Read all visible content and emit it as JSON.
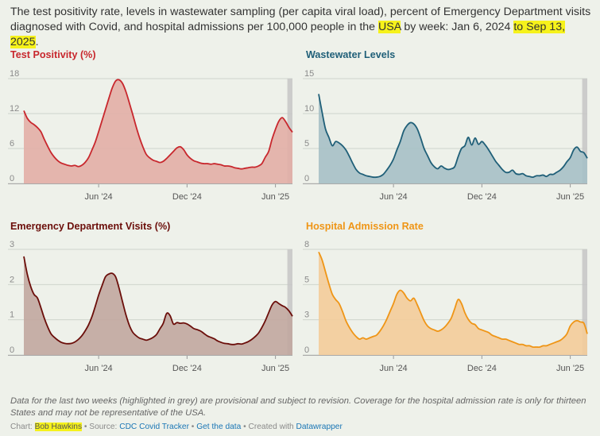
{
  "intro": {
    "part1": "The test positivity rate, levels in wastewater sampling (per capita viral load), percent of Emergency Department visits diagnosed with Covid, and hospital admissions per 100,000 people in the ",
    "country": "USA",
    "part2": " by week: Jan 6, 2024 ",
    "end_date": "to Sep 13, 2025",
    "part3": "."
  },
  "colors": {
    "test_positivity": "#c8272d",
    "test_positivity_fill": "#e2aea6",
    "wastewater": "#1f5f78",
    "wastewater_fill": "#a6c0c6",
    "ed_visits": "#6b0e0a",
    "ed_visits_fill": "#c1a7a0",
    "hospital": "#ef9516",
    "hospital_fill": "#f3cc9a",
    "provisional": "#c6c6c6",
    "grid": "#cfd4cc"
  },
  "chart_data": [
    {
      "id": "test_positivity",
      "type": "area",
      "title": "Test Positivity (%)",
      "ylim": [
        0,
        18
      ],
      "yticks": [
        "0",
        "6",
        "12",
        "18"
      ],
      "xticks": [
        "Jun '24",
        "Dec '24",
        "Jun '25"
      ],
      "xticks_week": [
        22,
        48,
        74
      ],
      "provisional_last_weeks": 2,
      "values": [
        12.5,
        11.2,
        10.5,
        10.1,
        9.6,
        8.9,
        7.6,
        6.4,
        5.3,
        4.5,
        3.9,
        3.5,
        3.3,
        3.1,
        3.0,
        3.1,
        2.9,
        3.1,
        3.6,
        4.4,
        5.7,
        7.1,
        8.9,
        10.8,
        12.7,
        14.6,
        16.4,
        17.6,
        17.8,
        17.2,
        15.8,
        13.9,
        11.9,
        9.8,
        7.9,
        6.3,
        5.0,
        4.4,
        4.0,
        3.8,
        3.6,
        3.8,
        4.3,
        4.9,
        5.5,
        6.1,
        6.3,
        5.8,
        4.9,
        4.3,
        3.9,
        3.7,
        3.5,
        3.4,
        3.4,
        3.3,
        3.4,
        3.3,
        3.2,
        3.0,
        3.0,
        2.9,
        2.7,
        2.6,
        2.5,
        2.6,
        2.7,
        2.8,
        2.8,
        3.0,
        3.4,
        4.5,
        5.5,
        7.6,
        9.3,
        10.7,
        11.3,
        10.6,
        9.6,
        8.8
      ]
    },
    {
      "id": "wastewater",
      "type": "area",
      "title": "Wastewater Levels",
      "ylim": [
        0,
        15
      ],
      "yticks": [
        "0",
        "5",
        "10",
        "15"
      ],
      "xticks": [
        "Jun '24",
        "Dec '24",
        "Jun '25"
      ],
      "xticks_week": [
        22,
        48,
        74
      ],
      "provisional_last_weeks": 2,
      "values": [
        12.8,
        10.2,
        7.8,
        6.6,
        5.4,
        6.0,
        5.8,
        5.4,
        4.8,
        3.9,
        2.9,
        2.0,
        1.5,
        1.3,
        1.1,
        1.0,
        0.9,
        0.9,
        1.0,
        1.3,
        1.9,
        2.6,
        3.5,
        4.8,
        6.0,
        7.5,
        8.3,
        8.7,
        8.5,
        7.8,
        6.5,
        5.0,
        4.0,
        3.0,
        2.4,
        2.1,
        2.5,
        2.2,
        2.0,
        2.1,
        2.4,
        3.8,
        5.0,
        5.4,
        6.6,
        5.5,
        6.5,
        5.6,
        6.0,
        5.5,
        4.8,
        4.0,
        3.2,
        2.6,
        2.0,
        1.6,
        1.6,
        1.9,
        1.4,
        1.3,
        1.4,
        1.1,
        1.0,
        0.9,
        1.1,
        1.1,
        1.2,
        1.0,
        1.3,
        1.3,
        1.6,
        1.9,
        2.4,
        3.1,
        3.7,
        4.8,
        5.2,
        4.6,
        4.4,
        3.6
      ]
    },
    {
      "id": "ed_visits",
      "type": "area",
      "title": "Emergency Department Visits (%)",
      "ylim": [
        0,
        3
      ],
      "yticks": [
        "0",
        "1",
        "2",
        "3"
      ],
      "xticks": [
        "Jun '24",
        "Dec '24",
        "Jun '25"
      ],
      "xticks_week": [
        22,
        48,
        74
      ],
      "provisional_last_weeks": 2,
      "values": [
        2.8,
        2.3,
        1.95,
        1.72,
        1.62,
        1.35,
        1.05,
        0.8,
        0.6,
        0.5,
        0.42,
        0.36,
        0.33,
        0.32,
        0.33,
        0.37,
        0.44,
        0.54,
        0.68,
        0.85,
        1.08,
        1.38,
        1.7,
        1.97,
        2.22,
        2.3,
        2.32,
        2.22,
        1.9,
        1.52,
        1.15,
        0.85,
        0.65,
        0.55,
        0.48,
        0.45,
        0.42,
        0.45,
        0.5,
        0.58,
        0.74,
        0.9,
        1.18,
        1.12,
        0.88,
        0.92,
        0.9,
        0.91,
        0.88,
        0.82,
        0.75,
        0.72,
        0.68,
        0.61,
        0.54,
        0.5,
        0.46,
        0.4,
        0.36,
        0.33,
        0.32,
        0.3,
        0.3,
        0.32,
        0.31,
        0.34,
        0.38,
        0.44,
        0.52,
        0.62,
        0.78,
        0.97,
        1.2,
        1.42,
        1.52,
        1.46,
        1.4,
        1.35,
        1.25,
        1.1
      ]
    },
    {
      "id": "hospital",
      "type": "area",
      "title": "Hospital Admission Rate",
      "ylim": [
        0,
        8
      ],
      "yticks": [
        "0",
        "3",
        "5",
        "8"
      ],
      "xticks": [
        "Jun '24",
        "Dec '24",
        "Jun '25"
      ],
      "xticks_week": [
        22,
        48,
        74
      ],
      "provisional_last_weeks": 2,
      "values": [
        7.8,
        7.2,
        6.3,
        5.4,
        4.6,
        4.2,
        3.9,
        3.3,
        2.6,
        2.1,
        1.7,
        1.4,
        1.2,
        1.3,
        1.2,
        1.3,
        1.4,
        1.5,
        1.8,
        2.2,
        2.7,
        3.3,
        3.9,
        4.6,
        4.9,
        4.7,
        4.3,
        4.1,
        4.3,
        3.8,
        3.2,
        2.6,
        2.2,
        2.0,
        1.9,
        1.8,
        1.9,
        2.1,
        2.4,
        2.8,
        3.5,
        4.2,
        3.9,
        3.2,
        2.7,
        2.4,
        2.3,
        2.0,
        1.9,
        1.8,
        1.7,
        1.5,
        1.4,
        1.3,
        1.2,
        1.2,
        1.1,
        1.0,
        0.9,
        0.8,
        0.8,
        0.7,
        0.7,
        0.6,
        0.6,
        0.6,
        0.7,
        0.7,
        0.8,
        0.9,
        1.0,
        1.1,
        1.3,
        1.6,
        2.2,
        2.5,
        2.6,
        2.5,
        2.4,
        1.6
      ]
    }
  ],
  "note": "Data for the last two weeks (highlighted in grey) are provisional and subject to revision. Coverage for the hospital admission rate is only for thirteen States and may not be representative of the USA.",
  "footer": {
    "chart_label": "Chart: ",
    "author": "Bob Hawkins",
    "source_sep": " • Source: ",
    "source": "CDC Covid Tracker",
    "sep1": " • ",
    "get_data": "Get the data",
    "created_with": " • Created with ",
    "tool": "Datawrapper"
  }
}
